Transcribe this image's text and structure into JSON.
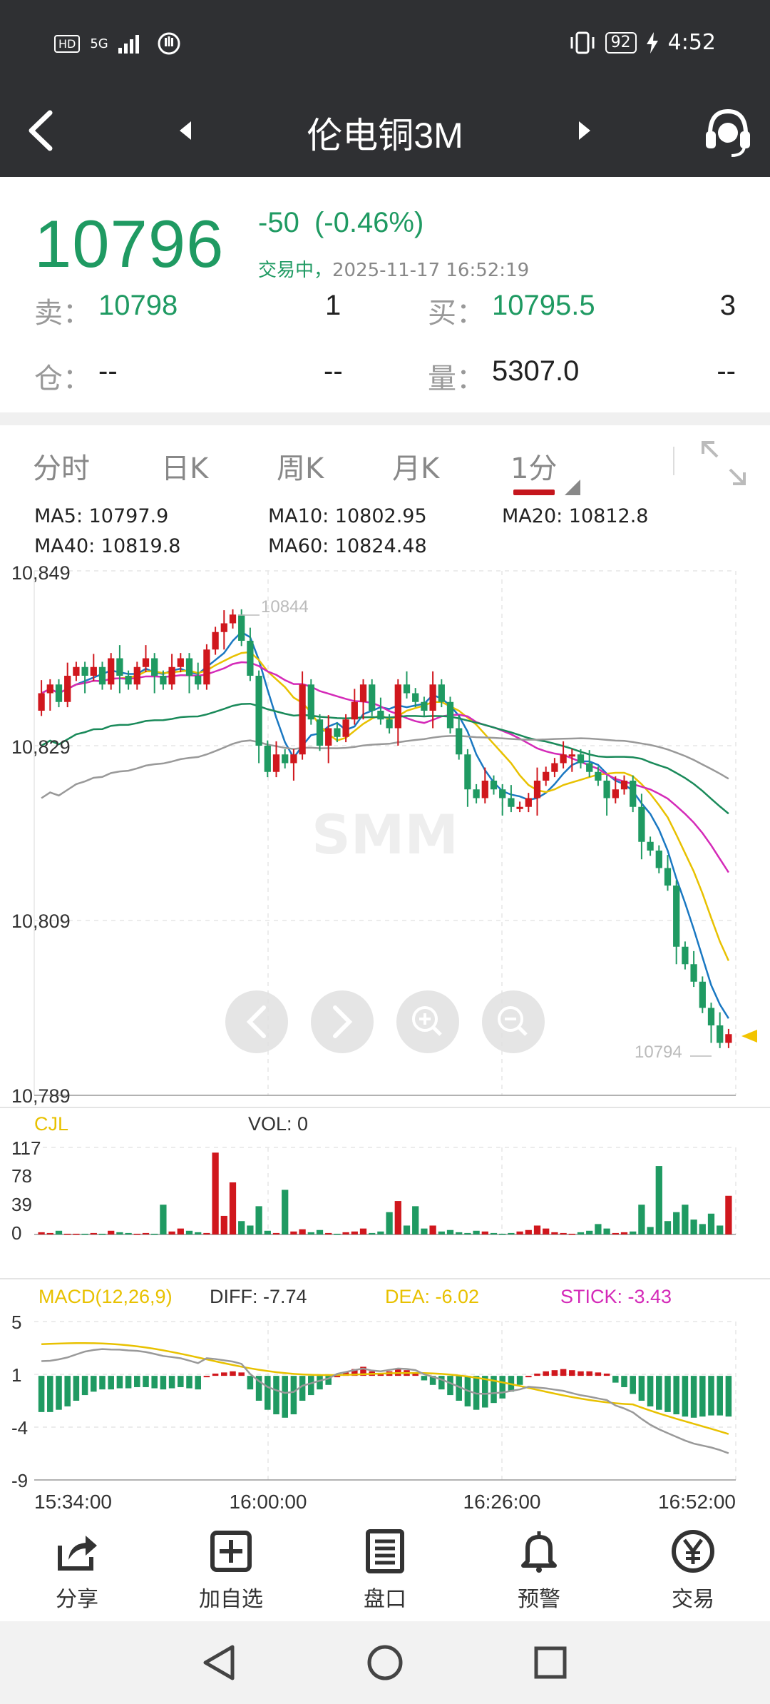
{
  "status_bar": {
    "left_badges": [
      "HD",
      "5G"
    ],
    "battery": "92",
    "time": "4:52"
  },
  "header": {
    "title": "伦电铜3M",
    "back_icon": "chevron-left-icon",
    "prev_icon": "triangle-left-icon",
    "next_icon": "triangle-right-icon",
    "service_icon": "headset-icon"
  },
  "quote": {
    "price": "10796",
    "change": "-50",
    "change_pct": "(-0.46%)",
    "trade_status": "交易中，",
    "timestamp": "2025-11-17 16:52:19",
    "sell_label": "卖：",
    "sell_price": "10798",
    "sell_qty": "1",
    "buy_label": "买：",
    "buy_price": "10795.5",
    "buy_qty": "3",
    "oi_label": "仓：",
    "oi_value": "--",
    "oi_change": "--",
    "vol_label": "量：",
    "vol_value": "5307.0",
    "vol_change": "--"
  },
  "tabs": [
    {
      "label": "分时"
    },
    {
      "label": "日K"
    },
    {
      "label": "周K"
    },
    {
      "label": "月K"
    },
    {
      "label": "1分"
    }
  ],
  "ma_legend": {
    "ma5": "MA5: 10797.9",
    "ma10": "MA10: 10802.95",
    "ma20": "MA20: 10812.8",
    "ma40": "MA40: 10819.8",
    "ma60": "MA60: 10824.48"
  },
  "colors": {
    "up": "#d0171d",
    "down": "#1f9a62",
    "ma5": "#1a78c2",
    "ma10": "#e8c100",
    "ma20": "#d42ab8",
    "ma40": "#1a8a5a",
    "ma60": "#999999"
  },
  "chart_data": [
    {
      "type": "candlestick",
      "y_ticks": [
        "10,849",
        "10,829",
        "10,809",
        "10,789"
      ],
      "ylim": [
        10789,
        10849
      ],
      "high_label": "10844",
      "low_label": "10794",
      "watermark": "SMM",
      "x_ticks": [
        "15:34:00",
        "16:00:00",
        "16:26:00",
        "16:52:00"
      ]
    },
    {
      "type": "bar",
      "name": "CJL",
      "vol_label": "VOL: 0",
      "y_ticks": [
        "117",
        "78",
        "39",
        "0"
      ],
      "ylim": [
        0,
        117
      ]
    },
    {
      "type": "bar",
      "name": "MACD(12,26,9)",
      "diff_label": "DIFF: -7.74",
      "dea_label": "DEA: -6.02",
      "stick_label": "STICK: -3.43",
      "y_ticks": [
        "5",
        "1",
        "-4",
        "-9"
      ],
      "ylim": [
        -9,
        5
      ]
    }
  ],
  "bottom_nav": [
    {
      "label": "分享",
      "icon": "share-icon"
    },
    {
      "label": "加自选",
      "icon": "add-favorite-icon"
    },
    {
      "label": "盘口",
      "icon": "order-book-icon"
    },
    {
      "label": "预警",
      "icon": "bell-icon"
    },
    {
      "label": "交易",
      "icon": "yen-trade-icon"
    }
  ]
}
